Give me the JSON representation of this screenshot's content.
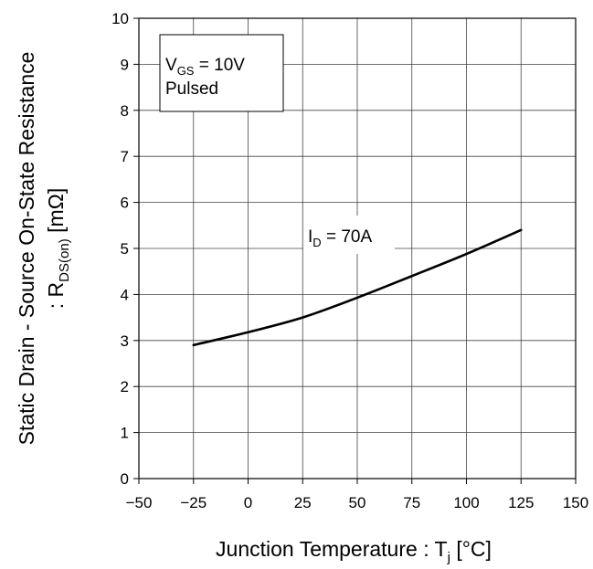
{
  "chart_data": {
    "type": "line",
    "xlabel": {
      "main": "Junction Temperature : T",
      "sub": "j",
      "unit": " [°C]"
    },
    "ylabel": {
      "line1": "Static Drain - Source On-State Resistance",
      "line2_prefix": ": R",
      "line2_sub": "DS(on)",
      "line2_unit": " [mΩ]"
    },
    "xlim": [
      -50,
      150
    ],
    "ylim": [
      0,
      10
    ],
    "xticks": [
      -50,
      -25,
      0,
      25,
      50,
      75,
      100,
      125,
      150
    ],
    "yticks": [
      0,
      1,
      2,
      3,
      4,
      5,
      6,
      7,
      8,
      9,
      10
    ],
    "grid": true,
    "series": [
      {
        "x": [
          -25,
          0,
          25,
          50,
          75,
          100,
          125
        ],
        "y": [
          2.9,
          3.18,
          3.5,
          3.93,
          4.4,
          4.88,
          5.4
        ]
      }
    ],
    "annotations": {
      "conditions": {
        "vgs_main": "V",
        "vgs_sub": "GS",
        "vgs_value": " = 10V",
        "mode": "Pulsed"
      },
      "current": {
        "main": "I",
        "sub": "D",
        "value": " = 70A"
      }
    }
  }
}
